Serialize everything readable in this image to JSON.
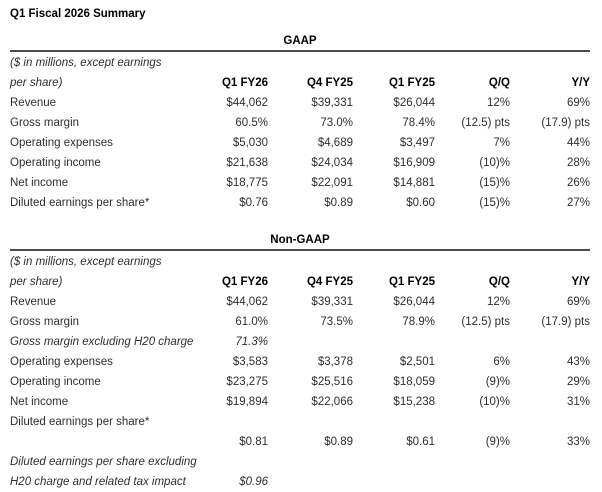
{
  "title": "Q1 Fiscal 2026 Summary",
  "gaap": {
    "heading": "GAAP",
    "note_line1": "($ in millions, except earnings",
    "note_line2": "per share)",
    "columns": [
      "Q1 FY26",
      "Q4 FY25",
      "Q1 FY25",
      "Q/Q",
      "Y/Y"
    ],
    "rows": [
      {
        "label": "Revenue",
        "values": [
          "$44,062",
          "$39,331",
          "$26,044",
          "12%",
          "69%"
        ]
      },
      {
        "label": "Gross margin",
        "values": [
          "60.5%",
          "73.0%",
          "78.4%",
          "(12.5) pts",
          "(17.9) pts"
        ]
      },
      {
        "label": "Operating expenses",
        "values": [
          "$5,030",
          "$4,689",
          "$3,497",
          "7%",
          "44%"
        ]
      },
      {
        "label": "Operating income",
        "values": [
          "$21,638",
          "$24,034",
          "$16,909",
          "(10)%",
          "28%"
        ]
      },
      {
        "label": "Net income",
        "values": [
          "$18,775",
          "$22,091",
          "$14,881",
          "(15)%",
          "26%"
        ]
      },
      {
        "label": "Diluted earnings per share*",
        "values": [
          "$0.76",
          "$0.89",
          "$0.60",
          "(15)%",
          "27%"
        ]
      }
    ]
  },
  "non_gaap": {
    "heading": "Non-GAAP",
    "note_line1": "($ in millions, except earnings",
    "note_line2": "per share)",
    "columns": [
      "Q1 FY26",
      "Q4 FY25",
      "Q1 FY25",
      "Q/Q",
      "Y/Y"
    ],
    "rows": [
      {
        "label": "Revenue",
        "values": [
          "$44,062",
          "$39,331",
          "$26,044",
          "12%",
          "69%"
        ]
      },
      {
        "label": "Gross margin",
        "values": [
          "61.0%",
          "73.5%",
          "78.9%",
          "(12.5) pts",
          "(17.9) pts"
        ]
      },
      {
        "label": "Gross margin excluding H20 charge",
        "values": [
          "71.3%",
          "",
          "",
          "",
          ""
        ],
        "italic": true
      },
      {
        "label": "Operating expenses",
        "values": [
          "$3,583",
          "$3,378",
          "$2,501",
          "6%",
          "43%"
        ]
      },
      {
        "label": "Operating income",
        "values": [
          "$23,275",
          "$25,516",
          "$18,059",
          "(9)%",
          "29%"
        ]
      },
      {
        "label": "Net income",
        "values": [
          "$19,894",
          "$22,066",
          "$15,238",
          "(10)%",
          "31%"
        ]
      },
      {
        "label": "Diluted earnings per share*",
        "values": [
          "",
          "",
          "",
          "",
          ""
        ]
      },
      {
        "label": "",
        "values": [
          "$0.81",
          "$0.89",
          "$0.61",
          "(9)%",
          "33%"
        ]
      },
      {
        "label": "Diluted earnings per share excluding",
        "values": [
          "",
          "",
          "",
          "",
          ""
        ],
        "italic": true
      },
      {
        "label": "H20 charge and related tax impact",
        "values": [
          "$0.96",
          "",
          "",
          "",
          ""
        ],
        "italic": true
      }
    ]
  }
}
